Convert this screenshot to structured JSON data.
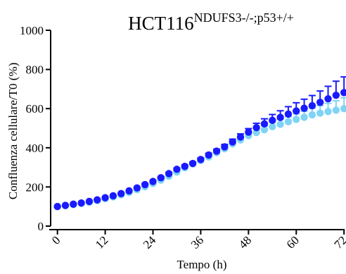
{
  "chart_data": {
    "type": "scatter",
    "title": {
      "main": "HCT116",
      "superscript": "NDUFS3-/-;p53+/+"
    },
    "xlabel": "Tempo (h)",
    "ylabel": "Confluenza cellulare/T0 (%)",
    "xlim": [
      -1,
      72.5
    ],
    "ylim": [
      0,
      1000
    ],
    "x_ticks": [
      0,
      12,
      24,
      36,
      48,
      60,
      72
    ],
    "y_ticks": [
      0,
      200,
      400,
      600,
      800,
      1000
    ],
    "grid": false,
    "series": [
      {
        "color": "#7fd4f5",
        "marker": "circle",
        "x": [
          0,
          2,
          4,
          6,
          8,
          10,
          12,
          14,
          16,
          18,
          20,
          22,
          24,
          26,
          28,
          30,
          32,
          34,
          36,
          38,
          40,
          42,
          44,
          46,
          48,
          50,
          52,
          54,
          56,
          58,
          60,
          62,
          64,
          66,
          68,
          70,
          72
        ],
        "y": [
          100,
          104,
          110,
          116,
          122,
          130,
          140,
          149,
          160,
          172,
          186,
          201,
          218,
          235,
          255,
          276,
          298,
          318,
          335,
          353,
          375,
          395,
          420,
          440,
          462,
          478,
          492,
          508,
          520,
          533,
          545,
          556,
          568,
          577,
          585,
          592,
          600
        ],
        "error": [
          2,
          2,
          2,
          2,
          2,
          3,
          3,
          3,
          3,
          3,
          4,
          4,
          4,
          5,
          5,
          5,
          6,
          7,
          7,
          8,
          9,
          10,
          12,
          14,
          16,
          18,
          20,
          22,
          24,
          26,
          28,
          30,
          34,
          38,
          42,
          48,
          55
        ]
      },
      {
        "color": "#1a1aff",
        "marker": "circle",
        "x": [
          0,
          2,
          4,
          6,
          8,
          10,
          12,
          14,
          16,
          18,
          20,
          22,
          24,
          26,
          28,
          30,
          32,
          34,
          36,
          38,
          40,
          42,
          44,
          46,
          48,
          50,
          52,
          54,
          56,
          58,
          60,
          62,
          64,
          66,
          68,
          70,
          72
        ],
        "y": [
          100,
          106,
          112,
          118,
          126,
          134,
          145,
          155,
          166,
          180,
          195,
          212,
          228,
          247,
          268,
          290,
          305,
          320,
          340,
          363,
          383,
          405,
          430,
          455,
          480,
          503,
          522,
          540,
          555,
          572,
          588,
          602,
          615,
          632,
          650,
          668,
          682
        ],
        "error": [
          2,
          2,
          2,
          2,
          3,
          3,
          3,
          3,
          4,
          4,
          4,
          5,
          5,
          5,
          6,
          6,
          7,
          7,
          8,
          9,
          10,
          12,
          14,
          16,
          18,
          22,
          26,
          30,
          34,
          38,
          42,
          46,
          52,
          58,
          64,
          72,
          80
        ]
      }
    ]
  }
}
